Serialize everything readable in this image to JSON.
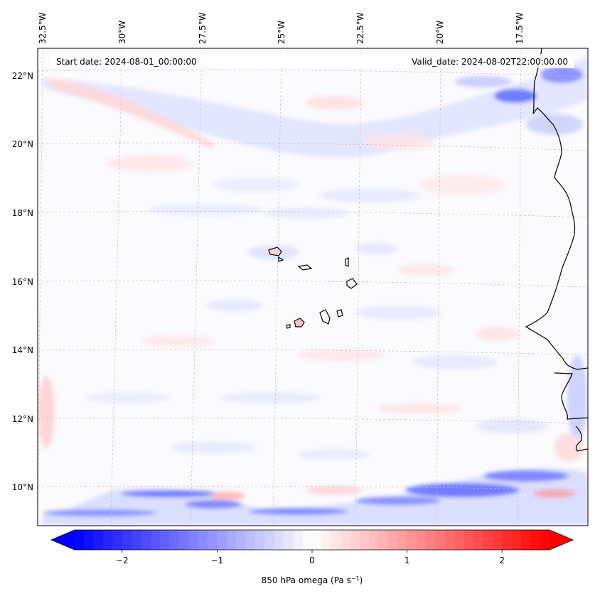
{
  "map": {
    "start_date": "Start date: 2024-08-01_00:00:00",
    "valid_date": "Valid_date: 2024-08-02T22:00:00.00",
    "lon_ticks": [
      "32.5°W",
      "30°W",
      "27.5°W",
      "25°W",
      "22.5°W",
      "20°W",
      "17.5°W"
    ],
    "lat_ticks": [
      "22°N",
      "20°N",
      "18°N",
      "16°N",
      "14°N",
      "12°N",
      "10°N"
    ],
    "lat_values": [
      22,
      20,
      18,
      16,
      14,
      12,
      10
    ],
    "lon_values": [
      -32.5,
      -30,
      -27.5,
      -25,
      -22.5,
      -20,
      -17.5
    ],
    "lat_range": [
      8.9,
      22.75
    ],
    "lon_range": [
      -32.6,
      -15.1
    ],
    "colormap": "bwr",
    "coastline_color": "#000000",
    "features": [
      "Cape Verde islands",
      "West African coastline"
    ]
  },
  "colorbar": {
    "label_text": "850 hPa omega (Pa s",
    "label_unit_sup": "−1",
    "label_close": ")",
    "tick_labels": [
      "−2",
      "−1",
      "0",
      "1",
      "2"
    ],
    "tick_values": [
      -2,
      -1,
      0,
      1,
      2
    ],
    "range": [
      -2.5,
      2.5
    ],
    "extend": "both",
    "levels": 50
  }
}
